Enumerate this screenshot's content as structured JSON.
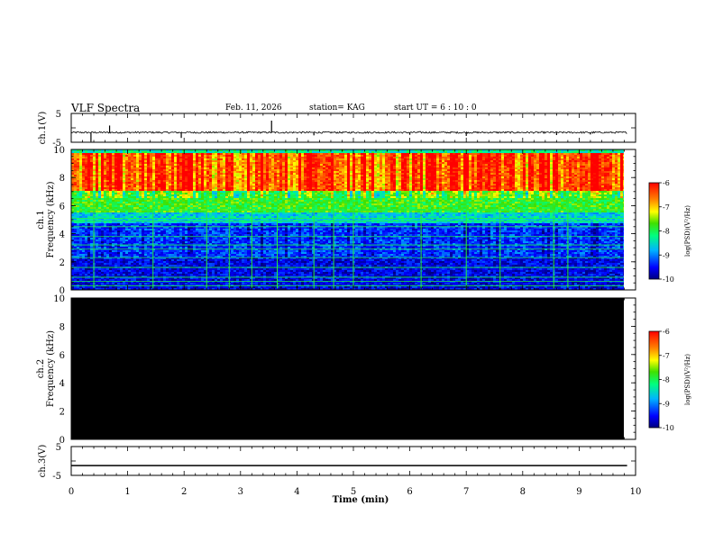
{
  "header": {
    "title": "VLF Spectra",
    "date": "Feb. 11, 2026",
    "station": "station= KAG",
    "start_ut": "start  UT =   6 : 10 : 0"
  },
  "colors": {
    "background": "#ffffff",
    "axes": "#000000",
    "trace": "#000000",
    "empty_spectrogram": "#000000"
  },
  "chart_data": [
    {
      "type": "line",
      "id": "ch1-waveform",
      "ylabel": "ch.1(V)",
      "ylim": [
        -5,
        5
      ],
      "yticks": [
        "5",
        "-5"
      ],
      "xlim": [
        0,
        10
      ],
      "baseline_v": -1.6,
      "spikes": [
        {
          "t": 0.35,
          "v": -4.8
        },
        {
          "t": 0.68,
          "v": 0.8
        },
        {
          "t": 1.95,
          "v": -3.5
        },
        {
          "t": 3.55,
          "v": 2.5
        },
        {
          "t": 4.3,
          "v": -2.6
        },
        {
          "t": 6.0,
          "v": -2.4
        },
        {
          "t": 7.0,
          "v": -2.8
        },
        {
          "t": 8.6,
          "v": -2.5
        },
        {
          "t": 9.2,
          "v": -2.3
        }
      ]
    },
    {
      "type": "heatmap",
      "id": "ch1-spectrogram",
      "ylabel": "ch.1\nFrequency (kHz)",
      "ylim": [
        0,
        10
      ],
      "yticks": [
        "0",
        "2",
        "4",
        "6",
        "8",
        "10"
      ],
      "xlim": [
        0,
        9.85
      ],
      "colorbar": {
        "label": "log(PSD)(V²/Hz)",
        "range": [
          -10,
          -6
        ],
        "ticks": [
          "-6",
          "-7",
          "-8",
          "-9",
          "-10"
        ]
      },
      "bands_khz": [
        {
          "from": 0.0,
          "to": 2.3,
          "level": -9.6
        },
        {
          "from": 2.3,
          "to": 4.8,
          "level": -9.3
        },
        {
          "from": 4.8,
          "to": 5.5,
          "level": -8.6
        },
        {
          "from": 5.5,
          "to": 7.0,
          "level": -7.8
        },
        {
          "from": 7.0,
          "to": 9.7,
          "level": -6.4
        },
        {
          "from": 9.7,
          "to": 10.0,
          "level": -8.3
        }
      ],
      "lines_khz": [
        0.3,
        0.6,
        0.9,
        1.6,
        2.3,
        2.9,
        3.2,
        3.8,
        4.5,
        4.9,
        5.1,
        5.7
      ],
      "impulses_min": [
        0.4,
        1.45,
        2.4,
        2.8,
        3.2,
        3.65,
        4.3,
        4.65,
        5.0,
        6.2,
        7.0,
        7.6,
        8.55,
        8.8
      ]
    },
    {
      "type": "heatmap",
      "id": "ch2-spectrogram",
      "ylabel": "ch.2\nFrequency (kHz)",
      "ylim": [
        0,
        10
      ],
      "yticks": [
        "0",
        "2",
        "4",
        "6",
        "8",
        "10"
      ],
      "xlim": [
        0,
        9.85
      ],
      "colorbar": {
        "label": "log(PSD)(V²/Hz)",
        "range": [
          -10,
          -6
        ],
        "ticks": [
          "-6",
          "-7",
          "-8",
          "-9",
          "-10"
        ]
      },
      "fill": "no data (black)"
    },
    {
      "type": "line",
      "id": "ch3-waveform",
      "ylabel": "ch.3(V)",
      "ylim": [
        -5,
        5
      ],
      "yticks": [
        "5",
        "-5"
      ],
      "xlim": [
        0,
        10
      ],
      "baseline_v": -1.6
    }
  ],
  "xaxis": {
    "label": "Time  (min)",
    "range": [
      0,
      10
    ],
    "ticks": [
      "0",
      "1",
      "2",
      "3",
      "4",
      "5",
      "6",
      "7",
      "8",
      "9",
      "10"
    ]
  }
}
